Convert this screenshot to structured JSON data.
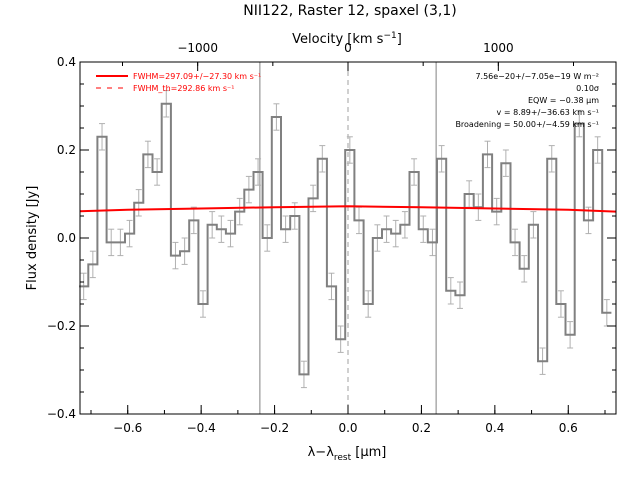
{
  "chart_data": {
    "type": "line",
    "title": "NII122, Raster 12, spaxel (3,1)",
    "xlabel": "λ−λ_rest [μm]",
    "xlabel_parts": {
      "base": "λ−λ",
      "sub": "rest",
      "unit": " [μm]"
    },
    "ylabel": "Flux density [Jy]",
    "top_axis_label": "Velocity [km s⁻¹]",
    "top_axis_label_parts": {
      "base": "Velocity [km s",
      "sup": "−1",
      "tail": "]"
    },
    "xlim": [
      -0.73,
      0.73
    ],
    "ylim": [
      -0.4,
      0.4
    ],
    "x_ticks": [
      "−0.6",
      "−0.4",
      "−0.2",
      "0.0",
      "0.2",
      "0.4",
      "0.6"
    ],
    "x_tick_values": [
      -0.6,
      -0.4,
      -0.2,
      0.0,
      0.2,
      0.4,
      0.6
    ],
    "y_ticks": [
      "−0.4",
      "−0.2",
      "0.0",
      "0.2",
      "0.4"
    ],
    "y_tick_values": [
      -0.4,
      -0.2,
      0.0,
      0.2,
      0.4
    ],
    "top_ticks": [
      "−1000",
      "0",
      "1000"
    ],
    "top_tick_values": [
      -1000,
      0,
      1000
    ],
    "top_axis_km_per_micron": 2442,
    "vertical_lines": [
      -0.24,
      0.0,
      0.24
    ],
    "legend": [
      {
        "label": "FWHM=297.09+/−27.30 km s⁻¹",
        "style": "solid",
        "color": "#ff0000"
      },
      {
        "label": "FWHM_th=292.86 km s⁻¹",
        "style": "dashed",
        "color": "#ff0000"
      }
    ],
    "annotations": [
      "7.56e−20+/−7.05e−19 W m⁻²",
      "0.10σ",
      "EQW = −0.38 μm",
      "v = 8.89+/−36.63 km s⁻¹",
      "Broadening = 50.00+/−4.59 km s⁻¹"
    ],
    "series": [
      {
        "style": "step",
        "color": "#808080",
        "x": [
          -0.72,
          -0.695,
          -0.67,
          -0.645,
          -0.62,
          -0.595,
          -0.57,
          -0.545,
          -0.52,
          -0.495,
          -0.47,
          -0.445,
          -0.42,
          -0.395,
          -0.37,
          -0.345,
          -0.32,
          -0.295,
          -0.27,
          -0.245,
          -0.22,
          -0.195,
          -0.17,
          -0.145,
          -0.12,
          -0.095,
          -0.07,
          -0.045,
          -0.02,
          0.005,
          0.03,
          0.055,
          0.08,
          0.105,
          0.13,
          0.155,
          0.18,
          0.205,
          0.23,
          0.255,
          0.28,
          0.305,
          0.33,
          0.355,
          0.38,
          0.405,
          0.43,
          0.455,
          0.48,
          0.505,
          0.53,
          0.555,
          0.58,
          0.605,
          0.63,
          0.655,
          0.68,
          0.705
        ],
        "y": [
          -0.11,
          -0.06,
          0.23,
          -0.01,
          -0.01,
          0.01,
          0.08,
          0.19,
          0.15,
          0.305,
          -0.04,
          -0.03,
          0.04,
          -0.15,
          0.03,
          0.02,
          0.01,
          0.06,
          0.11,
          0.15,
          0.0,
          0.275,
          0.02,
          0.05,
          -0.31,
          0.09,
          0.18,
          -0.11,
          -0.23,
          0.2,
          0.04,
          -0.15,
          0.0,
          0.02,
          0.01,
          0.03,
          0.15,
          0.02,
          -0.01,
          0.18,
          -0.12,
          -0.13,
          0.1,
          0.07,
          0.19,
          0.06,
          0.17,
          -0.01,
          -0.07,
          0.03,
          -0.28,
          0.18,
          -0.15,
          -0.22,
          0.26,
          0.04,
          0.2,
          -0.17
        ],
        "err": [
          0.03,
          0.03,
          0.03,
          0.03,
          0.03,
          0.03,
          0.03,
          0.03,
          0.03,
          0.03,
          0.03,
          0.03,
          0.03,
          0.03,
          0.03,
          0.03,
          0.03,
          0.03,
          0.03,
          0.03,
          0.03,
          0.03,
          0.03,
          0.03,
          0.03,
          0.03,
          0.03,
          0.03,
          0.03,
          0.03,
          0.03,
          0.03,
          0.03,
          0.03,
          0.03,
          0.03,
          0.03,
          0.03,
          0.03,
          0.03,
          0.03,
          0.03,
          0.03,
          0.03,
          0.03,
          0.03,
          0.03,
          0.03,
          0.03,
          0.03,
          0.03,
          0.03,
          0.03,
          0.03,
          0.03,
          0.03,
          0.03,
          0.03
        ]
      },
      {
        "style": "line",
        "color": "#ff0000",
        "x": [
          -0.73,
          -0.6,
          -0.4,
          -0.2,
          0.0,
          0.2,
          0.4,
          0.6,
          0.73
        ],
        "y": [
          0.061,
          0.064,
          0.067,
          0.07,
          0.072,
          0.07,
          0.067,
          0.064,
          0.06
        ]
      }
    ]
  }
}
